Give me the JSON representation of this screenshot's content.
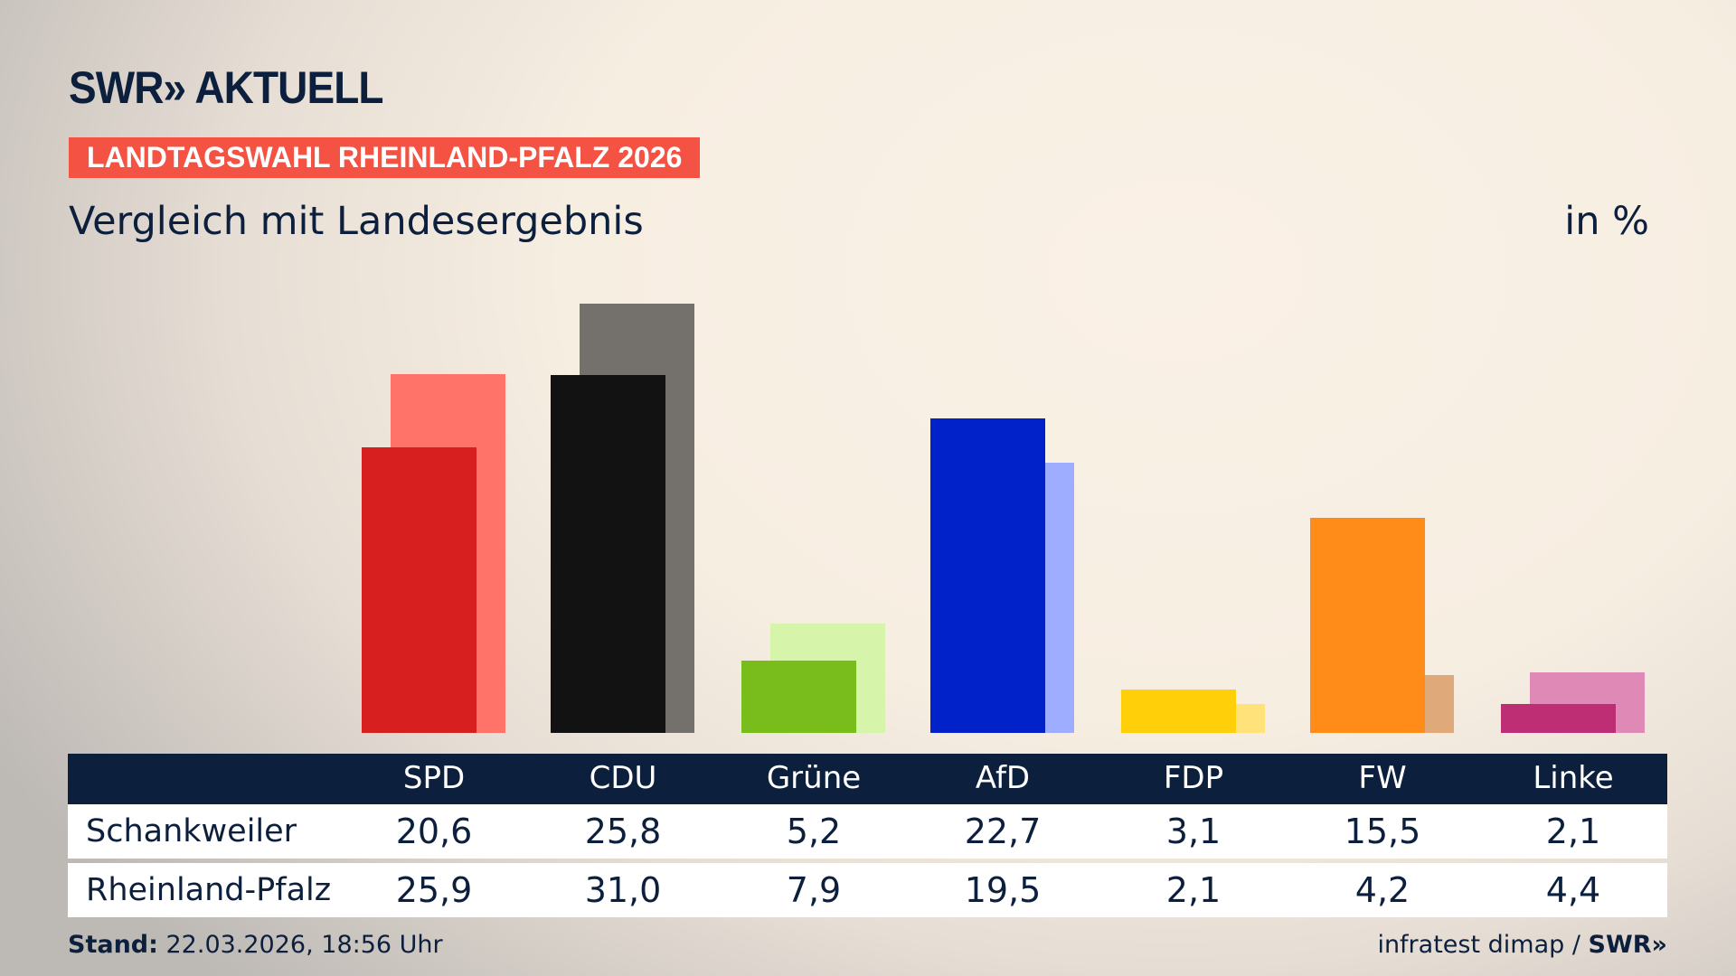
{
  "header": {
    "logo": "SWR» AKTUELL",
    "tag": "LANDTAGSWAHL RHEINLAND-PFALZ 2026",
    "subtitle": "Vergleich mit Landesergebnis",
    "unit": "in %"
  },
  "footer": {
    "stand_label": "Stand:",
    "stand_value": " 22.03.2026, 18:56 Uhr",
    "source": "infratest dimap / ",
    "source_logo": "SWR»"
  },
  "chart_data": {
    "type": "bar",
    "categories": [
      "SPD",
      "CDU",
      "Grüne",
      "AfD",
      "FDP",
      "FW",
      "Linke"
    ],
    "series": [
      {
        "name": "Schankweiler",
        "values": [
          20.6,
          25.8,
          5.2,
          22.7,
          3.1,
          15.5,
          2.1
        ],
        "labels": [
          "20,6",
          "25,8",
          "5,2",
          "22,7",
          "3,1",
          "15,5",
          "2,1"
        ]
      },
      {
        "name": "Rheinland-Pfalz",
        "values": [
          25.9,
          31.0,
          7.9,
          19.5,
          2.1,
          4.2,
          4.4
        ],
        "labels": [
          "25,9",
          "31,0",
          "7,9",
          "19,5",
          "2,1",
          "4,2",
          "4,4"
        ]
      }
    ],
    "colors": {
      "primary": [
        "#d71f1f",
        "#121212",
        "#78bd1b",
        "#0022c8",
        "#ffcf0a",
        "#ff8c19",
        "#be2e74"
      ],
      "secondary": [
        "#ff7369",
        "#74706c",
        "#d6f5ab",
        "#9eadff",
        "#ffe27a",
        "#e0a97a",
        "#de89b6"
      ]
    },
    "ylim": [
      0,
      31.0
    ],
    "grid": false,
    "legend": "table-bottom"
  }
}
